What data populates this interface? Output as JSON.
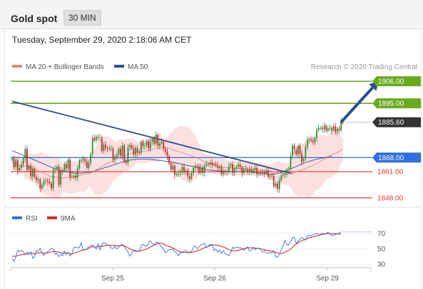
{
  "header": {
    "title": "Gold spot",
    "timeframe": "30 MIN",
    "timestamp": "Tuesday, September 29, 2020 2:18:06 AM CET"
  },
  "legend": {
    "ma20_label": "MA 20 + Bollinger Bands",
    "ma50_label": "MA 50",
    "credit": "Research © 2020 Trading Central"
  },
  "rsi_legend": {
    "rsi_label": "RSI",
    "ma_label": "9MA"
  },
  "colors": {
    "candle_up": "#2e8b2e",
    "candle_down": "#c62828",
    "ma20": "#e88585",
    "ma50": "#2d4f8f",
    "bollinger_fill": "#fbdada",
    "resistance_green": "#6aaa1e",
    "pivot_blue": "#2f6fe0",
    "support_red": "#e53935",
    "trendline": "#2d4f8f",
    "rsi_line": "#3b6fd6",
    "rsi_ma": "#d32f2f",
    "current_price_tag": "#333333"
  },
  "chart_data": [
    {
      "type": "line",
      "title": "Gold spot",
      "timeframe": "30 MIN",
      "ylim": [
        1843,
        1911
      ],
      "x_tick_labels": [
        "Sep 25",
        "Sep 26",
        "Sep 29"
      ],
      "series": [
        {
          "name": "MA 20 + Bollinger Bands"
        },
        {
          "name": "MA 50"
        }
      ],
      "close": [
        1867.6,
        1863.3,
        1866.6,
        1861.6,
        1862.9,
        1864.6,
        1867.6,
        1872.3,
        1862.0,
        1864.0,
        1858.6,
        1862.5,
        1858.3,
        1856.7,
        1857.2,
        1852.6,
        1854.4,
        1856.4,
        1856.7,
        1856.1,
        1855.2,
        1852.8,
        1862.0,
        1862.5,
        1863.5,
        1854.5,
        1861.6,
        1861.5,
        1864.7,
        1862.6,
        1867.0,
        1858.3,
        1858.5,
        1859.0,
        1858.0,
        1862.6,
        1866.6,
        1866.8,
        1867.3,
        1866.1,
        1862.8,
        1865.4,
        1869.8,
        1877.9,
        1876.5,
        1878.4,
        1878.0,
        1878.0,
        1871.2,
        1874.5,
        1872.8,
        1872.6,
        1872.2,
        1872.5,
        1867.0,
        1868.4,
        1869.5,
        1872.4,
        1869.0,
        1874.0,
        1866.1,
        1865.4,
        1873.1,
        1874.2,
        1872.6,
        1869.6,
        1872.8,
        1870.4,
        1870.3,
        1875.8,
        1873.8,
        1873.9,
        1876.1,
        1872.6,
        1876.0,
        1877.4,
        1874.9,
        1879.4,
        1873.9,
        1875.1,
        1875.9,
        1872.3,
        1871.0,
        1868.7,
        1865.0,
        1861.9,
        1863.9,
        1859.3,
        1859.7,
        1860.2,
        1861.3,
        1863.3,
        1860.6,
        1861.5,
        1858.7,
        1857.5,
        1860.3,
        1862.8,
        1863.8,
        1863.7,
        1860.4,
        1863.2,
        1860.4,
        1864.1,
        1864.8,
        1864.6,
        1865.6,
        1864.4,
        1864.9,
        1864.2,
        1862.8,
        1863.5,
        1859.8,
        1861.1,
        1861.0,
        1861.0,
        1864.0,
        1864.8,
        1860.5,
        1862.5,
        1863.5,
        1864.6,
        1863.2,
        1860.3,
        1862.5,
        1862.3,
        1861.1,
        1862.3,
        1860.9,
        1862.0,
        1862.9,
        1859.8,
        1860.6,
        1860.5,
        1860.6,
        1860.2,
        1861.4,
        1858.4,
        1859.1,
        1858.9,
        1853.7,
        1855.1,
        1852.4,
        1856.7,
        1859.2,
        1859.3,
        1860.2,
        1862.0,
        1862.3,
        1868.8,
        1874.0,
        1871.8,
        1869.6,
        1873.9,
        1870.0,
        1866.0,
        1867.6,
        1873.3,
        1876.8,
        1877.0,
        1876.4,
        1875.6,
        1877.8,
        1881.7,
        1882.8,
        1882.8,
        1882.1,
        1883.9,
        1881.3,
        1882.7,
        1882.8,
        1881.4,
        1883.6,
        1880.7,
        1882.4,
        1881.6,
        1886.1,
        1885.6
      ],
      "ma20": [
        1865.2,
        1865.1,
        1864.8,
        1864.5,
        1864.3,
        1864.1,
        1863.9,
        1863.9,
        1863.6,
        1863.3,
        1863.0,
        1862.7,
        1862.3,
        1861.9,
        1861.5,
        1861.1,
        1860.6,
        1860.2,
        1859.7,
        1859.3,
        1858.9,
        1858.5,
        1858.4,
        1858.3,
        1858.3,
        1858.0,
        1857.9,
        1857.8,
        1858.0,
        1858.0,
        1858.3,
        1858.2,
        1858.2,
        1858.3,
        1858.4,
        1858.6,
        1859.0,
        1859.2,
        1859.5,
        1859.7,
        1859.8,
        1860.0,
        1860.3,
        1860.8,
        1861.3,
        1861.9,
        1862.5,
        1863.1,
        1863.6,
        1864.2,
        1864.7,
        1865.2,
        1865.6,
        1866.1,
        1866.4,
        1866.8,
        1867.2,
        1867.7,
        1868.1,
        1868.6,
        1868.9,
        1869.2,
        1869.6,
        1869.9,
        1870.2,
        1870.4,
        1870.6,
        1870.7,
        1870.8,
        1870.9,
        1871.0,
        1871.1,
        1871.3,
        1871.5,
        1871.8,
        1872.1,
        1872.4,
        1872.7,
        1872.9,
        1873.0,
        1873.1,
        1873.1,
        1873.0,
        1872.8,
        1872.6,
        1872.3,
        1872.0,
        1871.6,
        1871.3,
        1871.0,
        1870.7,
        1870.4,
        1870.1,
        1869.8,
        1869.5,
        1869.1,
        1868.8,
        1868.5,
        1868.2,
        1867.8,
        1867.3,
        1866.9,
        1866.4,
        1866.0,
        1865.6,
        1865.2,
        1864.9,
        1864.6,
        1864.3,
        1864.0,
        1863.8,
        1863.6,
        1863.4,
        1863.2,
        1863.0,
        1862.9,
        1862.8,
        1862.8,
        1862.8,
        1862.7,
        1862.7,
        1862.6,
        1862.6,
        1862.6,
        1862.5,
        1862.4,
        1862.3,
        1862.3,
        1862.2,
        1862.1,
        1862.1,
        1862.1,
        1862.0,
        1861.9,
        1861.8,
        1861.7,
        1861.6,
        1861.5,
        1861.4,
        1861.3,
        1861.0,
        1860.8,
        1860.6,
        1860.3,
        1860.2,
        1860.1,
        1860.0,
        1859.9,
        1859.8,
        1860.0,
        1860.3,
        1860.6,
        1860.9,
        1861.3,
        1861.6,
        1861.9,
        1862.2,
        1862.6,
        1863.0,
        1863.4,
        1863.7,
        1864.1,
        1864.6,
        1865.1,
        1865.7,
        1866.2,
        1866.7,
        1867.3,
        1867.8,
        1868.3,
        1868.9,
        1869.3,
        1869.8,
        1870.2,
        1870.6,
        1871.1,
        1871.6,
        1872.2
      ],
      "ma50": [
        1871.5,
        1871.1,
        1870.7,
        1870.3,
        1869.9,
        1869.5,
        1869.1,
        1868.8,
        1868.4,
        1868.0,
        1867.6,
        1867.2,
        1866.8,
        1866.4,
        1866.0,
        1865.6,
        1865.2,
        1864.8,
        1864.4,
        1864.0,
        1863.6,
        1863.2,
        1862.8,
        1862.4,
        1862.1,
        1861.8,
        1861.5,
        1861.3,
        1861.1,
        1860.9,
        1860.8,
        1860.6,
        1860.5,
        1860.4,
        1860.3,
        1860.3,
        1860.3,
        1860.3,
        1860.4,
        1860.5,
        1860.6,
        1860.7,
        1860.9,
        1861.1,
        1861.4,
        1861.6,
        1861.9,
        1862.2,
        1862.5,
        1862.8,
        1863.1,
        1863.4,
        1863.7,
        1864.0,
        1864.3,
        1864.6,
        1864.9,
        1865.2,
        1865.5,
        1865.8,
        1866.0,
        1866.3,
        1866.5,
        1866.7,
        1866.9,
        1867.0,
        1867.1,
        1867.2,
        1867.3,
        1867.3,
        1867.3,
        1867.3,
        1867.2,
        1867.2,
        1867.1,
        1867.0,
        1866.9,
        1866.8,
        1866.7,
        1866.6,
        1866.5,
        1866.3,
        1866.2,
        1866.1,
        1866.0,
        1865.8,
        1865.7,
        1865.5,
        1865.3,
        1865.1,
        1864.9,
        1864.7,
        1864.5,
        1864.3,
        1864.1,
        1863.9,
        1863.7,
        1863.5,
        1863.3,
        1863.1,
        1862.9,
        1862.7,
        1862.5,
        1862.3,
        1862.1,
        1861.9,
        1861.8,
        1861.7,
        1861.6,
        1861.5,
        1861.4,
        1861.3,
        1861.3,
        1861.2,
        1861.2,
        1861.1,
        1861.1,
        1861.1,
        1861.1,
        1861.1,
        1861.1,
        1861.1,
        1861.1,
        1861.1,
        1861.1,
        1861.0,
        1861.0,
        1860.9,
        1860.8,
        1860.7,
        1860.6,
        1860.5,
        1860.4,
        1860.3,
        1860.2,
        1860.1,
        1860.0,
        1859.9,
        1859.8,
        1859.8,
        1859.8,
        1859.9,
        1860.1,
        1860.4,
        1860.7,
        1861.0,
        1861.3,
        1861.6,
        1862.0,
        1862.4,
        1862.8,
        1863.2,
        1863.6,
        1864.0,
        1864.4,
        1864.8,
        1865.2,
        1865.5,
        1865.8,
        1866.1,
        1866.4,
        1866.7,
        1867.0,
        1867.2,
        1867.4,
        1867.6,
        1867.8,
        1868.0,
        1868.2,
        1868.4,
        1868.6,
        1868.8
      ],
      "levels": [
        {
          "value": 1906.0,
          "label": "1906.00",
          "kind": "resistance",
          "color": "#6aaa1e"
        },
        {
          "value": 1895.0,
          "label": "1895.00",
          "kind": "resistance",
          "color": "#6aaa1e"
        },
        {
          "value": 1885.6,
          "label": "1885.60",
          "kind": "current",
          "color": "#333333"
        },
        {
          "value": 1868.0,
          "label": "1868.00",
          "kind": "pivot",
          "color": "#2f6fe0"
        },
        {
          "value": 1861.0,
          "label": "1861.00",
          "kind": "support",
          "color": "#e53935"
        },
        {
          "value": 1848.0,
          "label": "1848.00",
          "kind": "support",
          "color": "#e53935"
        }
      ],
      "trendline": {
        "from": {
          "bar": 0,
          "value": 1896
        },
        "to": {
          "bar": 150,
          "value": 1860
        }
      },
      "forecast_arrow": {
        "from": {
          "bar": 176,
          "value": 1885.6
        },
        "to": {
          "bar": 196,
          "value": 1906
        }
      }
    },
    {
      "type": "line",
      "title": "RSI",
      "ylim": [
        20,
        80
      ],
      "y_ticks": [
        30,
        50,
        70
      ],
      "x_tick_labels": [
        "Sep 25",
        "Sep 26",
        "Sep 29"
      ],
      "series": [
        {
          "name": "RSI",
          "values": [
            38.0,
            33.3,
            39.5,
            48.4,
            46.0,
            48.1,
            45.6,
            42.7,
            45.6,
            42.5,
            46.2,
            37.9,
            39.8,
            47.8,
            46.7,
            50.8,
            44.2,
            41.2,
            44.6,
            46.6,
            48.2,
            50.5,
            49.9,
            43.1,
            44.2,
            39.8,
            43.2,
            40.7,
            47.0,
            42.4,
            45.7,
            40.6,
            43.7,
            51.8,
            52.3,
            51.6,
            51.2,
            57.9,
            47.9,
            49.5,
            48.8,
            53.0,
            54.0,
            54.9,
            52.2,
            49.5,
            56.5,
            48.3,
            56.3,
            58.2,
            57.1,
            55.2,
            54.4,
            51.1,
            50.3,
            53.1,
            49.6,
            52.2,
            54.3,
            55.8,
            52.8,
            48.5,
            46.0,
            40.5,
            44.2,
            48.2,
            46.4,
            46.9,
            46.2,
            54.0,
            55.7,
            53.6,
            53.3,
            57.4,
            60.1,
            56.8,
            54.9,
            58.2,
            58.2,
            55.6,
            52.1,
            49.8,
            44.8,
            47.0,
            48.8,
            49.2,
            49.8,
            46.6,
            44.5,
            41.0,
            45.4,
            44.8,
            47.4,
            47.8,
            45.3,
            46.0,
            46.7,
            51.3,
            54.0,
            50.2,
            52.2,
            55.2,
            55.4,
            57.2,
            51.6,
            53.9,
            55.6,
            55.2,
            47.3,
            49.8,
            45.5,
            48.6,
            43.8,
            47.3,
            43.1,
            42.9,
            40.7,
            44.8,
            52.1,
            50.5,
            52.5,
            51.4,
            51.7,
            50.0,
            47.8,
            50.6,
            52.6,
            47.1,
            47.9,
            52.2,
            48.7,
            50.2,
            51.2,
            48.7,
            45.6,
            47.4,
            45.1,
            44.2,
            45.4,
            44.6,
            47.3,
            39.5,
            38.9,
            42.5,
            49.1,
            54.5,
            60.6,
            55.1,
            55.1,
            58.1,
            64.8,
            65.0,
            57.1,
            59.8,
            62.5,
            64.6,
            63.1,
            61.2,
            67.2,
            66.9,
            67.1,
            68.1,
            69.2,
            69.4,
            69.0,
            68.6,
            70.2,
            68.5,
            69.9,
            71.6,
            69.2,
            67.1,
            67.7,
            68.6,
            70.0,
            70.8,
            71.6
          ]
        },
        {
          "name": "9MA",
          "values": [
            40.5,
            40.2,
            40.3,
            41.2,
            41.8,
            42.4,
            42.6,
            42.8,
            43.4,
            43.9,
            44.5,
            44.1,
            43.7,
            44.3,
            44.5,
            45.2,
            44.9,
            44.2,
            44.5,
            44.6,
            45.3,
            46.1,
            46.6,
            46.4,
            46.1,
            45.5,
            45.0,
            44.4,
            44.5,
            44.2,
            44.4,
            43.6,
            43.2,
            44.1,
            45.0,
            45.8,
            46.5,
            48.0,
            48.2,
            49.0,
            49.7,
            50.8,
            51.8,
            52.7,
            52.5,
            52.3,
            53.3,
            52.7,
            53.4,
            53.9,
            54.3,
            54.4,
            54.6,
            54.4,
            54.0,
            54.5,
            53.9,
            53.9,
            54.0,
            54.3,
            53.6,
            52.5,
            51.4,
            49.8,
            48.8,
            48.2,
            47.6,
            47.2,
            46.8,
            47.6,
            48.4,
            48.9,
            49.6,
            51.0,
            52.5,
            53.7,
            54.5,
            55.7,
            57.0,
            57.3,
            56.9,
            56.1,
            54.7,
            53.7,
            53.0,
            52.1,
            51.2,
            49.8,
            48.3,
            46.8,
            46.0,
            45.7,
            45.4,
            45.3,
            45.1,
            45.0,
            45.3,
            46.0,
            46.9,
            47.4,
            48.1,
            49.1,
            50.3,
            51.6,
            52.3,
            53.2,
            54.3,
            55.3,
            54.9,
            54.9,
            54.4,
            54.0,
            52.9,
            52.4,
            51.5,
            50.3,
            48.9,
            47.8,
            47.5,
            47.3,
            47.6,
            48.1,
            48.8,
            49.6,
            50.3,
            50.8,
            51.4,
            51.3,
            51.2,
            51.2,
            50.8,
            50.5,
            50.4,
            50.1,
            49.4,
            48.9,
            48.3,
            47.8,
            47.3,
            46.9,
            46.5,
            45.5,
            44.6,
            44.0,
            43.8,
            44.4,
            45.7,
            46.9,
            48.0,
            49.5,
            51.9,
            54.4,
            56.2,
            57.8,
            59.2,
            60.6,
            61.7,
            62.1,
            63.4,
            64.3,
            65.0,
            65.6,
            66.0,
            66.4,
            67.2,
            68.0,
            68.7,
            69.2,
            69.3,
            69.6,
            69.8,
            69.7,
            69.5,
            69.3,
            69.1,
            69.1,
            69.3
          ]
        }
      ]
    }
  ]
}
